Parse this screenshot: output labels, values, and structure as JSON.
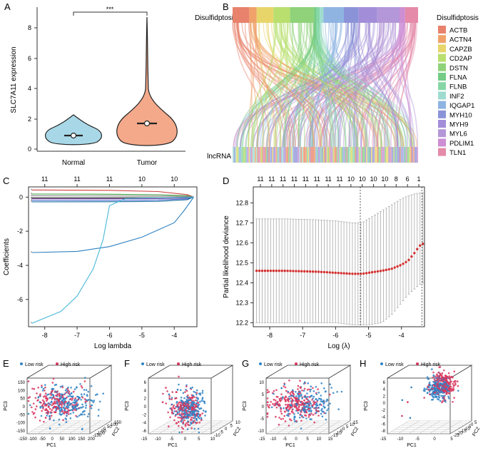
{
  "panels": {
    "A": {
      "letter": "A",
      "ylabel": "SLC7A11 expression",
      "significance": "***",
      "yticks": [
        "0",
        "2",
        "4",
        "6",
        "8"
      ],
      "groups": [
        "Normal",
        "Tumor"
      ],
      "colors": {
        "normal": "#a8d8e8",
        "tumor": "#f4a98a"
      }
    },
    "B": {
      "letter": "B",
      "top_label": "Disulfidptosis",
      "bottom_label": "lncRNA",
      "legend_title": "Disulfidptosis"
    },
    "C": {
      "letter": "C",
      "xlabel": "Log lambda",
      "ylabel": "Coefficients",
      "top_ticks": [
        "11",
        "11",
        "11",
        "10",
        "10"
      ],
      "xticks": [
        "-8",
        "-7",
        "-6",
        "-5",
        "-4"
      ],
      "yticks": [
        "0",
        "-2",
        "-4",
        "-6"
      ]
    },
    "D": {
      "letter": "D",
      "xlabel": "Log (λ)",
      "ylabel": "Partial likelihood deviance",
      "top_ticks": [
        "11",
        "11",
        "11",
        "11",
        "11",
        "11",
        "11",
        "11",
        "10",
        "10",
        "10",
        "10",
        "8",
        "6",
        "1"
      ],
      "xticks": [
        "-8",
        "-7",
        "-6",
        "-5",
        "-4"
      ],
      "yticks": [
        "12.2",
        "12.3",
        "12.4",
        "12.5",
        "12.6",
        "12.7",
        "12.8"
      ]
    },
    "E": {
      "letter": "E",
      "legend_low": "Low risk",
      "legend_high": "High risk",
      "zlabel": "PC3",
      "xlabel": "PC1",
      "ylabel": "PC2",
      "zticks": [
        "150",
        "100",
        "50",
        "0",
        "-50",
        "-100",
        "-150"
      ],
      "xticks": [
        "-150",
        "-100",
        "-50",
        "0",
        "50",
        "100",
        "150",
        "200"
      ],
      "yticks": [
        "-150",
        "-100",
        "-50",
        "0",
        "50",
        "100",
        "150"
      ]
    },
    "F": {
      "letter": "F",
      "legend_low": "Low risk",
      "legend_high": "High risk",
      "zlabel": "PC3",
      "xlabel": "PC1",
      "ylabel": "PC2",
      "zticks": [
        "6",
        "4",
        "2",
        "0",
        "-2",
        "-4",
        "-6"
      ],
      "xticks": [
        "-15",
        "-10",
        "-5",
        "0",
        "5",
        "10"
      ],
      "yticks": [
        "-10",
        "-5",
        "0",
        "5",
        "10"
      ]
    },
    "G": {
      "letter": "G",
      "legend_low": "Low risk",
      "legend_high": "High risk",
      "zlabel": "PC3",
      "xlabel": "PC1",
      "ylabel": "PC2",
      "zticks": [
        "10",
        "5",
        "0",
        "-5",
        "-10"
      ],
      "xticks": [
        "-15",
        "-10",
        "-5",
        "0",
        "5",
        "10",
        "15"
      ],
      "yticks": [
        "-15",
        "-10",
        "-5",
        "0",
        "5",
        "10",
        "15"
      ]
    },
    "H": {
      "letter": "H",
      "legend_low": "Low risk",
      "legend_high": "High risk",
      "zlabel": "PC3",
      "xlabel": "PC1",
      "ylabel": "PC2",
      "zticks": [
        "6",
        "4",
        "2",
        "0",
        "-2",
        "-4",
        "-6",
        "-8"
      ],
      "xticks": [
        "-15",
        "-10",
        "-5",
        "0",
        "5"
      ],
      "yticks": [
        "-25",
        "-20",
        "-15",
        "-10",
        "-5",
        "0",
        "5"
      ]
    }
  },
  "colors": {
    "low_risk": "#2f83c5",
    "high_risk": "#d9345d"
  },
  "chart_data": [
    {
      "type": "violin",
      "panel": "A",
      "categories": [
        "Normal",
        "Tumor"
      ],
      "medians": [
        0.8,
        1.7
      ],
      "ylim": [
        0,
        9
      ]
    },
    {
      "type": "sankey",
      "panel": "B",
      "legend": [
        {
          "name": "ACTB",
          "color": "#e8826c"
        },
        {
          "name": "ACTN4",
          "color": "#f0a26a"
        },
        {
          "name": "CAPZB",
          "color": "#e8d56a"
        },
        {
          "name": "CD2AP",
          "color": "#b9df6e"
        },
        {
          "name": "DSTN",
          "color": "#8fd27a"
        },
        {
          "name": "FLNA",
          "color": "#74cc86"
        },
        {
          "name": "FLNB",
          "color": "#86d6a6"
        },
        {
          "name": "INF2",
          "color": "#9fdccf"
        },
        {
          "name": "IQGAP1",
          "color": "#8fb4e2"
        },
        {
          "name": "MYH10",
          "color": "#8b93d8"
        },
        {
          "name": "MYH9",
          "color": "#a28ed8"
        },
        {
          "name": "MYL6",
          "color": "#b497d8"
        },
        {
          "name": "PDLIM1",
          "color": "#cd8ed4"
        },
        {
          "name": "TLN1",
          "color": "#e58aa8"
        }
      ]
    },
    {
      "type": "line",
      "panel": "C",
      "xlim": [
        -8.5,
        -3.3
      ],
      "ylim": [
        -7.6,
        0.6
      ],
      "series": [
        {
          "name": "c1",
          "color": "#d04040",
          "x": [
            -8.4,
            -6,
            -4.5,
            -3.6,
            -3.4
          ],
          "y": [
            0.42,
            0.4,
            0.33,
            0.15,
            0
          ]
        },
        {
          "name": "c2",
          "color": "#3a9a3a",
          "x": [
            -8.4,
            -6,
            -4.5,
            -3.6,
            -3.4
          ],
          "y": [
            0.18,
            0.17,
            0.14,
            0.08,
            0
          ]
        },
        {
          "name": "c3",
          "color": "#888888",
          "x": [
            -8.4,
            -6,
            -4.5,
            -3.6,
            -3.4
          ],
          "y": [
            0.08,
            0.07,
            0.06,
            0.04,
            0
          ]
        },
        {
          "name": "c4",
          "color": "#222222",
          "x": [
            -8.4,
            -6,
            -4.5,
            -3.6,
            -3.4
          ],
          "y": [
            -0.04,
            -0.04,
            -0.03,
            -0.02,
            0
          ]
        },
        {
          "name": "c5",
          "color": "#7a3fa0",
          "x": [
            -8.4,
            -6,
            -4.5,
            -3.6,
            -3.4
          ],
          "y": [
            -0.1,
            -0.1,
            -0.09,
            -0.05,
            0
          ]
        },
        {
          "name": "c6",
          "color": "#4a6fd0",
          "x": [
            -8.4,
            -6,
            -4.5,
            -3.6,
            -3.4
          ],
          "y": [
            -0.2,
            -0.19,
            -0.17,
            -0.1,
            0
          ]
        },
        {
          "name": "c7",
          "color": "#1f6fa0",
          "x": [
            -8.4,
            -6,
            -4.5,
            -3.6,
            -3.4
          ],
          "y": [
            -0.28,
            -0.27,
            -0.25,
            -0.15,
            0
          ]
        },
        {
          "name": "c8",
          "color": "#2c7fc0",
          "x": [
            -8.4,
            -7,
            -6,
            -5,
            -4,
            -3.7,
            -3.4
          ],
          "y": [
            -3.25,
            -3.18,
            -2.9,
            -2.35,
            -1.5,
            -0.8,
            0
          ]
        },
        {
          "name": "c9",
          "color": "#49b8d8",
          "x": [
            -8.4,
            -7.5,
            -7,
            -6.5,
            -6.2,
            -6,
            -5.5,
            -5,
            -4,
            -3.4
          ],
          "y": [
            -7.4,
            -6.7,
            -5.8,
            -4.2,
            -2.5,
            -0.5,
            -0.08,
            -0.05,
            -0.03,
            0
          ]
        }
      ]
    },
    {
      "type": "errorbar",
      "panel": "D",
      "xlim": [
        -8.5,
        -3.3
      ],
      "ylim": [
        12.18,
        12.88
      ],
      "x": [
        -8.4,
        -7.5,
        -6.5,
        -6.0,
        -5.5,
        -5.2,
        -5.0,
        -4.6,
        -4.3,
        -4.0,
        -3.8,
        -3.6,
        -3.45,
        -3.35
      ],
      "y": [
        12.46,
        12.46,
        12.455,
        12.45,
        12.445,
        12.445,
        12.45,
        12.46,
        12.47,
        12.49,
        12.51,
        12.55,
        12.585,
        12.595
      ],
      "upper": [
        12.72,
        12.72,
        12.715,
        12.71,
        12.7,
        12.7,
        12.72,
        12.76,
        12.79,
        12.82,
        12.835,
        12.845,
        12.85,
        12.85
      ],
      "lower": [
        12.2,
        12.2,
        12.2,
        12.2,
        12.19,
        12.19,
        12.19,
        12.2,
        12.24,
        12.3,
        12.34,
        12.37,
        12.39,
        12.4
      ],
      "vlines": [
        -5.25,
        -3.38
      ]
    }
  ]
}
